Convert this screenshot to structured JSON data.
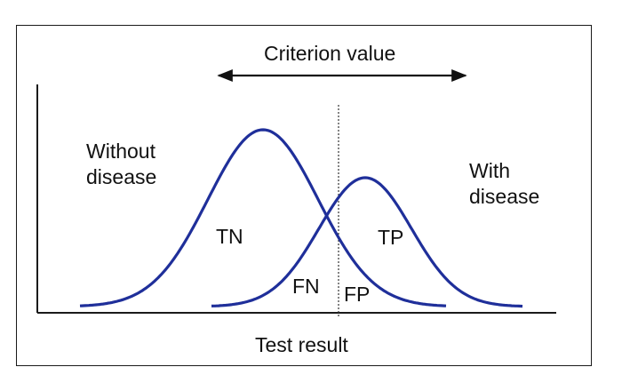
{
  "diagram": {
    "top_label": "Criterion value",
    "x_axis_label": "Test result",
    "left_curve_label_line1": "Without",
    "left_curve_label_line2": "disease",
    "right_curve_label_line1": "With",
    "right_curve_label_line2": "disease",
    "region_tn": "TN",
    "region_tp": "TP",
    "region_fn": "FN",
    "region_fp": "FP",
    "curve_color": "#1f2f9a",
    "axis_color": "#1a1a1a"
  }
}
